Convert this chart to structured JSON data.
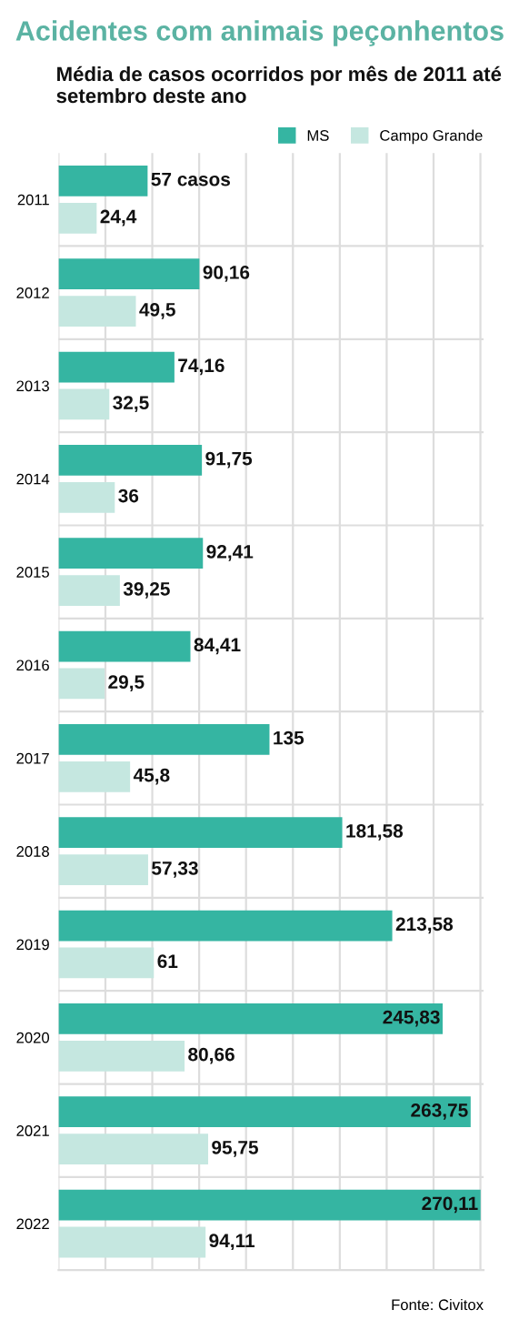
{
  "chart_data": {
    "type": "bar",
    "orientation": "horizontal",
    "title": "Acidentes com animais peçonhentos",
    "subtitle": "Média de casos ocorridos por mês de 2011 até setembro deste ano",
    "categories": [
      "2011",
      "2012",
      "2013",
      "2014",
      "2015",
      "2016",
      "2017",
      "2018",
      "2019",
      "2020",
      "2021",
      "2022"
    ],
    "series": [
      {
        "name": "MS",
        "color": "#35b5a2",
        "values": [
          57,
          90.16,
          74.16,
          91.75,
          92.41,
          84.41,
          135,
          181.58,
          213.58,
          245.83,
          263.75,
          270.11
        ],
        "value_labels": [
          "57 casos",
          "90,16",
          "74,16",
          "91,75",
          "92,41",
          "84,41",
          "135",
          "181,58",
          "213,58",
          "245,83",
          "263,75",
          "270,11"
        ]
      },
      {
        "name": "Campo Grande",
        "color": "#c5e7e0",
        "values": [
          24.4,
          49.5,
          32.5,
          36,
          39.25,
          29.5,
          45.8,
          57.33,
          61,
          80.66,
          95.75,
          94.11
        ],
        "value_labels": [
          "24,4",
          "49,5",
          "32,5",
          "36",
          "39,25",
          "29,5",
          "45,8",
          "57,33",
          "61",
          "80,66",
          "95,75",
          "94,11"
        ]
      }
    ],
    "xlim": [
      0,
      272
    ],
    "xticks": [
      {
        "value": 0,
        "label": null
      },
      {
        "value": 30,
        "label": null
      },
      {
        "value": 60,
        "label": null
      },
      {
        "value": 90,
        "label": null
      },
      {
        "value": 120,
        "label": null
      },
      {
        "value": 150,
        "label": null
      },
      {
        "value": 180,
        "label": null
      },
      {
        "value": 210,
        "label": null
      },
      {
        "value": 240,
        "label": null
      },
      {
        "value": 270,
        "label": null
      }
    ],
    "grid": "x",
    "tick_labels": "y",
    "legend": "top right",
    "annotations": [
      "Fonte: Civitox"
    ]
  }
}
